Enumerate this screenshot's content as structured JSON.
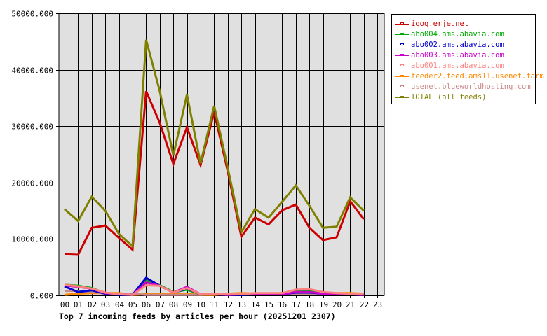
{
  "chart_data": {
    "type": "line",
    "title": "Top 7 incoming feeds by articles per hour (20251201 2307)",
    "xlabel": "",
    "ylabel": "",
    "ylim": [
      0,
      50000
    ],
    "yticks": [
      "0.000",
      "10000.000",
      "20000.000",
      "30000.000",
      "40000.000",
      "50000.000"
    ],
    "ytick_values": [
      0,
      10000,
      20000,
      30000,
      40000,
      50000
    ],
    "categories": [
      "00",
      "01",
      "02",
      "03",
      "04",
      "05",
      "06",
      "07",
      "08",
      "09",
      "10",
      "11",
      "12",
      "13",
      "14",
      "15",
      "16",
      "17",
      "18",
      "19",
      "20",
      "21",
      "22",
      "23"
    ],
    "grid": true,
    "legend_position": "right",
    "series": [
      {
        "name": "iqoq.erje.net",
        "color": "#cc0000",
        "values": [
          7300,
          7200,
          12000,
          12400,
          10200,
          8100,
          36200,
          30600,
          23300,
          29800,
          23100,
          32500,
          22000,
          10400,
          13800,
          12600,
          15100,
          16100,
          12000,
          9800,
          10300,
          16700,
          13500
        ]
      },
      {
        "name": "abo004.ams.abavia.com",
        "color": "#00aa00",
        "values": [
          1900,
          1700,
          1300,
          400,
          200,
          100,
          2600,
          1800,
          600,
          1000,
          200,
          200,
          100,
          200,
          200,
          200,
          300,
          800,
          800,
          400,
          300,
          300,
          200
        ]
      },
      {
        "name": "abo002.ams.abavia.com",
        "color": "#0000cc",
        "values": [
          1600,
          600,
          900,
          300,
          100,
          100,
          3100,
          1700,
          500,
          1200,
          200,
          200,
          100,
          100,
          200,
          200,
          200,
          500,
          500,
          300,
          200,
          200,
          100
        ]
      },
      {
        "name": "abo003.ams.abavia.com",
        "color": "#cc00cc",
        "values": [
          1800,
          1500,
          1200,
          400,
          200,
          100,
          2300,
          1700,
          500,
          1500,
          200,
          200,
          100,
          200,
          200,
          200,
          200,
          600,
          600,
          300,
          200,
          200,
          100
        ]
      },
      {
        "name": "abo001.ams.abavia.com",
        "color": "#ff8080",
        "values": [
          1900,
          1600,
          1200,
          500,
          200,
          100,
          1800,
          1700,
          500,
          1300,
          200,
          200,
          200,
          200,
          400,
          400,
          400,
          1000,
          1100,
          600,
          400,
          300,
          200
        ]
      },
      {
        "name": "feeder2.feed.ams11.usenet.farm",
        "color": "#ff8800",
        "values": [
          100,
          300,
          400,
          400,
          400,
          100,
          200,
          200,
          200,
          300,
          100,
          100,
          300,
          400,
          300,
          300,
          400,
          400,
          400,
          400,
          400,
          400,
          300
        ]
      },
      {
        "name": "usenet.blueworldhosting.com",
        "color": "#cc8888",
        "values": [
          800,
          800,
          600,
          300,
          200,
          300,
          100,
          100,
          100,
          100,
          100,
          300,
          100,
          200,
          200,
          200,
          200,
          200,
          200,
          200,
          200,
          200,
          200
        ]
      },
      {
        "name": "TOTAL (all feeds)",
        "color": "#808000",
        "values": [
          15300,
          13200,
          17500,
          15000,
          10900,
          8700,
          45300,
          36200,
          24800,
          35600,
          23400,
          33600,
          22600,
          11200,
          15300,
          13800,
          16600,
          19500,
          15900,
          12000,
          12200,
          17400,
          15000
        ]
      }
    ]
  },
  "legend": {
    "items": [
      {
        "label": "iqoq.erje.net",
        "color": "#cc0000"
      },
      {
        "label": "abo004.ams.abavia.com",
        "color": "#00aa00"
      },
      {
        "label": "abo002.ams.abavia.com",
        "color": "#0000cc"
      },
      {
        "label": "abo003.ams.abavia.com",
        "color": "#cc00cc"
      },
      {
        "label": "abo001.ams.abavia.com",
        "color": "#ff8080"
      },
      {
        "label": "feeder2.feed.ams11.usenet.farm",
        "color": "#ff8800"
      },
      {
        "label": "usenet.blueworldhosting.com",
        "color": "#cc8888"
      },
      {
        "label": "TOTAL (all feeds)",
        "color": "#808000"
      }
    ]
  },
  "colors": {
    "plot_background": "#e0e0e0",
    "grid": "#000000"
  }
}
